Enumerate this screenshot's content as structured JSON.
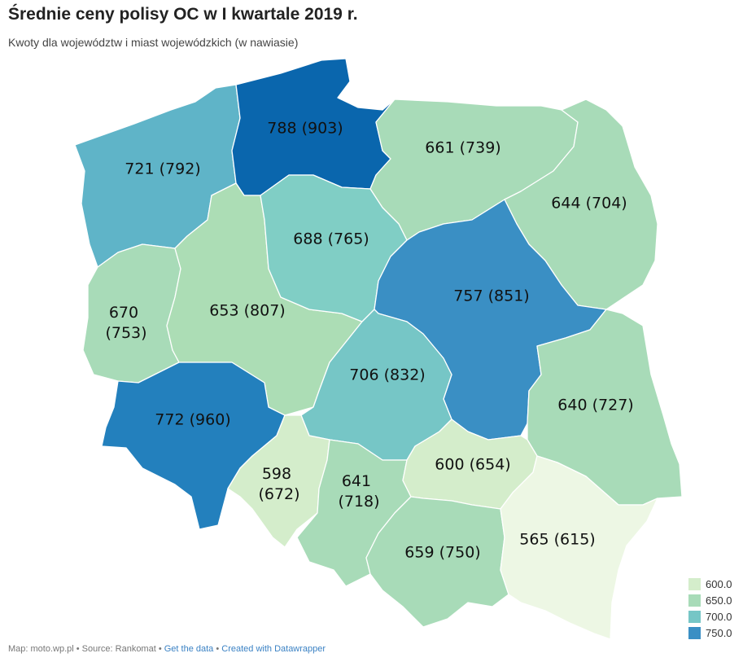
{
  "title": "Średnie ceny polisy OC w I kwartale 2019 r.",
  "subtitle": "Kwoty dla województw i miast wojewódzkich (w nawiasie)",
  "regions": [
    {
      "id": "zachodniopomorskie",
      "label": "721 (792)",
      "color": "#5fb4c8"
    },
    {
      "id": "pomorskie",
      "label": "788 (903)",
      "color": "#0a66ad"
    },
    {
      "id": "warminsko-mazurskie",
      "label": "661 (739)",
      "color": "#a8dbb8"
    },
    {
      "id": "podlaskie",
      "label": "644 (704)",
      "color": "#a8dbb8"
    },
    {
      "id": "lubuskie",
      "label_lines": [
        "670",
        "(753)"
      ],
      "color": "#a8dbb8"
    },
    {
      "id": "wielkopolskie",
      "label": "653 (807)",
      "color": "#acddb5"
    },
    {
      "id": "kujawsko-pomorskie",
      "label": "688 (765)",
      "color": "#80cec5"
    },
    {
      "id": "mazowieckie",
      "label": "757 (851)",
      "color": "#3a8fc4"
    },
    {
      "id": "lodzkie",
      "label": "706 (832)",
      "color": "#76c6c6"
    },
    {
      "id": "dolnoslaskie",
      "label": "772 (960)",
      "color": "#2380bd"
    },
    {
      "id": "lubelskie",
      "label": "640 (727)",
      "color": "#a8dbb8"
    },
    {
      "id": "opolskie",
      "label_lines": [
        "598",
        "(672)"
      ],
      "color": "#d4edcb"
    },
    {
      "id": "slaskie",
      "label_lines": [
        "641",
        "(718)"
      ],
      "color": "#a8dbb8"
    },
    {
      "id": "swietokrzyskie",
      "label": "600 (654)",
      "color": "#d4edcb"
    },
    {
      "id": "malopolskie",
      "label": "659 (750)",
      "color": "#a8dbb8"
    },
    {
      "id": "podkarpackie",
      "label": "565 (615)",
      "color": "#edf7e4"
    }
  ],
  "legend": [
    {
      "label": "600.0",
      "color": "#d4edcb"
    },
    {
      "label": "650.0",
      "color": "#a8dbb8"
    },
    {
      "label": "700.0",
      "color": "#76c6c6"
    },
    {
      "label": "750.0",
      "color": "#3a8fc4"
    }
  ],
  "footer": {
    "map_text": "Map: moto.wp.pl",
    "sep1": " • ",
    "source_text": "Source: Rankomat",
    "sep2": " • ",
    "get_data": "Get the data",
    "sep3": " • ",
    "created_with": "Created with Datawrapper"
  }
}
